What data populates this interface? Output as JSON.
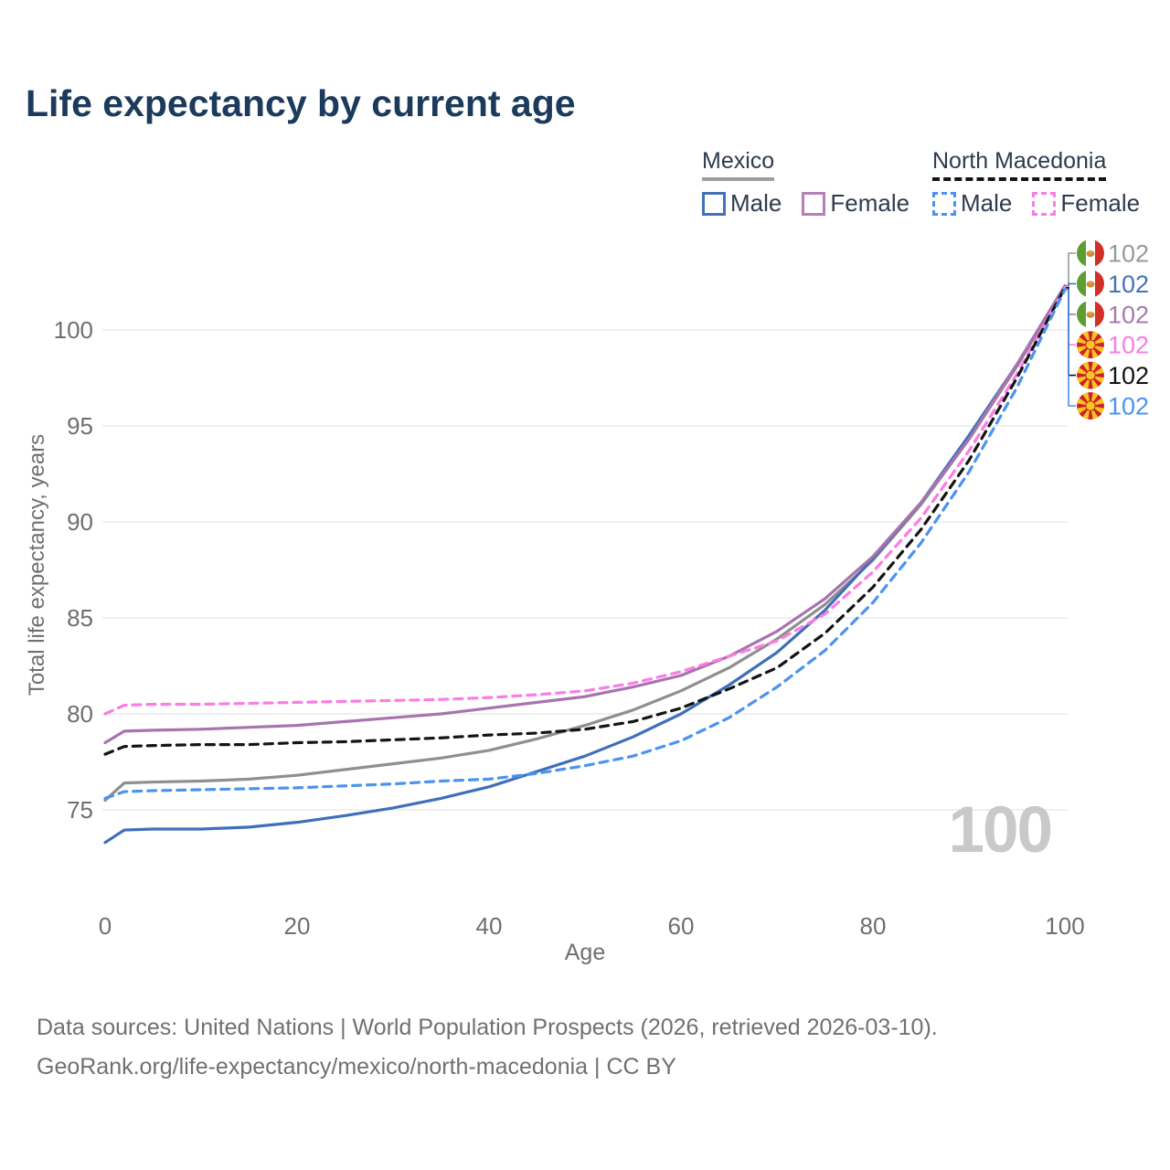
{
  "header": {
    "title": "Life expectancy by current age"
  },
  "legend": {
    "groups": [
      {
        "name": "Mexico",
        "line_style": "solid",
        "underline_color": "#9e9e9e",
        "items": [
          {
            "label": "Male",
            "color": "#4472b8",
            "dashed": false
          },
          {
            "label": "Female",
            "color": "#b67fb6",
            "dashed": false
          }
        ]
      },
      {
        "name": "North Macedonia",
        "line_style": "dashed",
        "underline_color": "#141414",
        "items": [
          {
            "label": "Male",
            "color": "#4b93f0",
            "dashed": true
          },
          {
            "label": "Female",
            "color": "#fb7ce3",
            "dashed": true
          }
        ]
      }
    ]
  },
  "chart_data": {
    "type": "line",
    "title": "Life expectancy by current age",
    "xlabel": "Age",
    "ylabel": "Total life expectancy, years",
    "xlim": [
      0,
      100
    ],
    "ylim": [
      72,
      103
    ],
    "xticks": [
      0,
      20,
      40,
      60,
      80,
      100
    ],
    "yticks": [
      75,
      80,
      85,
      90,
      95,
      100
    ],
    "grid": "horizontal",
    "age_watermark": "100",
    "x": [
      0,
      2,
      5,
      10,
      15,
      20,
      25,
      30,
      35,
      40,
      45,
      50,
      55,
      60,
      65,
      70,
      75,
      80,
      85,
      90,
      95,
      100
    ],
    "series": [
      {
        "id": "mexico-total",
        "name": "Mexico",
        "country": "Mexico",
        "sex": "both",
        "color": "#8f8f8f",
        "label_color": "#999999",
        "dash": false,
        "flag": "mx",
        "end_label": "102",
        "values": [
          75.5,
          76.4,
          76.45,
          76.5,
          76.6,
          76.8,
          77.1,
          77.4,
          77.7,
          78.1,
          78.7,
          79.4,
          80.2,
          81.2,
          82.4,
          83.9,
          85.7,
          88.0,
          90.9,
          94.3,
          98.1,
          102.3
        ]
      },
      {
        "id": "mexico-male",
        "name": "Mexico Male",
        "country": "Mexico",
        "sex": "male",
        "color": "#3f6fba",
        "label_color": "#4472b8",
        "dash": false,
        "flag": "mx",
        "end_label": "102",
        "values": [
          73.3,
          73.95,
          74.0,
          74.0,
          74.1,
          74.35,
          74.7,
          75.1,
          75.6,
          76.2,
          77.0,
          77.8,
          78.8,
          80.0,
          81.5,
          83.2,
          85.4,
          88.1,
          91.0,
          94.5,
          98.2,
          102.3
        ]
      },
      {
        "id": "mexico-female",
        "name": "Mexico Female",
        "country": "Mexico",
        "sex": "female",
        "color": "#a873ae",
        "label_color": "#a878b0",
        "dash": false,
        "flag": "mx",
        "end_label": "102",
        "values": [
          78.5,
          79.1,
          79.15,
          79.2,
          79.3,
          79.4,
          79.6,
          79.8,
          80.0,
          80.3,
          80.6,
          80.9,
          81.4,
          82.0,
          83.0,
          84.3,
          86.0,
          88.2,
          91.0,
          94.3,
          98.2,
          102.3
        ]
      },
      {
        "id": "nm-female",
        "name": "North Macedonia Female",
        "country": "North Macedonia",
        "sex": "female",
        "color": "#fb7ce3",
        "label_color": "#fb7ce3",
        "dash": true,
        "flag": "mk",
        "end_label": "102",
        "values": [
          80.0,
          80.45,
          80.5,
          80.5,
          80.55,
          80.6,
          80.65,
          80.7,
          80.75,
          80.85,
          81.0,
          81.2,
          81.6,
          82.2,
          83.0,
          83.8,
          85.2,
          87.4,
          90.2,
          93.7,
          97.7,
          102.2
        ]
      },
      {
        "id": "nm-total",
        "name": "North Macedonia",
        "country": "North Macedonia",
        "sex": "both",
        "color": "#141414",
        "label_color": "#111111",
        "dash": true,
        "flag": "mk",
        "end_label": "102",
        "values": [
          77.9,
          78.3,
          78.35,
          78.4,
          78.4,
          78.5,
          78.55,
          78.65,
          78.75,
          78.9,
          79.0,
          79.2,
          79.6,
          80.3,
          81.3,
          82.4,
          84.2,
          86.6,
          89.6,
          93.2,
          97.5,
          102.2
        ]
      },
      {
        "id": "nm-male",
        "name": "North Macedonia Male",
        "country": "North Macedonia",
        "sex": "male",
        "color": "#4b93f0",
        "label_color": "#4b93f0",
        "dash": true,
        "flag": "mk",
        "end_label": "102",
        "values": [
          75.6,
          75.95,
          76.0,
          76.05,
          76.1,
          76.15,
          76.25,
          76.35,
          76.5,
          76.6,
          76.9,
          77.3,
          77.8,
          78.6,
          79.8,
          81.4,
          83.3,
          85.8,
          88.9,
          92.6,
          97.0,
          102.1
        ]
      }
    ]
  },
  "footer": {
    "line1": "Data sources: United Nations | World Population Prospects (2026, retrieved 2026-03-10).",
    "line2": "GeoRank.org/life-expectancy/mexico/north-macedonia | CC BY"
  }
}
